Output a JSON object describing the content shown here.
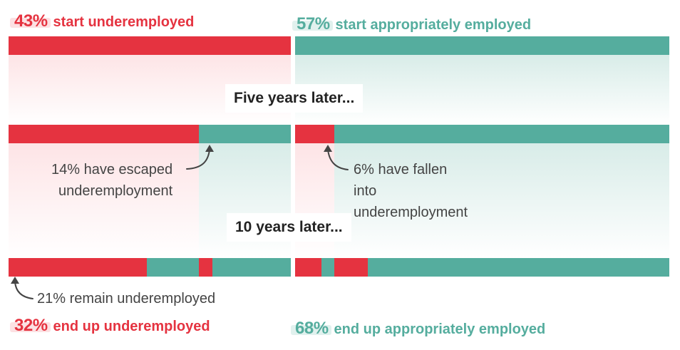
{
  "headlines": {
    "start_under": {
      "pct": "43%",
      "text": "start underemployed"
    },
    "start_appropriate": {
      "pct": "57%",
      "text": "start appropriately employed"
    },
    "end_under": {
      "pct": "32%",
      "text": "end up underemployed"
    },
    "end_appropriate": {
      "pct": "68%",
      "text": "end up appropriately employed"
    }
  },
  "stages": {
    "five_years": "Five years later...",
    "ten_years": "10 years later..."
  },
  "annotations": {
    "escaped": [
      "14% have escaped",
      "underemployment"
    ],
    "fallen": [
      "6% have fallen",
      "into",
      "underemployment"
    ],
    "remain": "21% remain underemployed"
  },
  "colors": {
    "underemployed": "#e53340",
    "appropriately_employed": "#55ad9e"
  },
  "icons": [
    "curved-arrow-icon"
  ]
}
